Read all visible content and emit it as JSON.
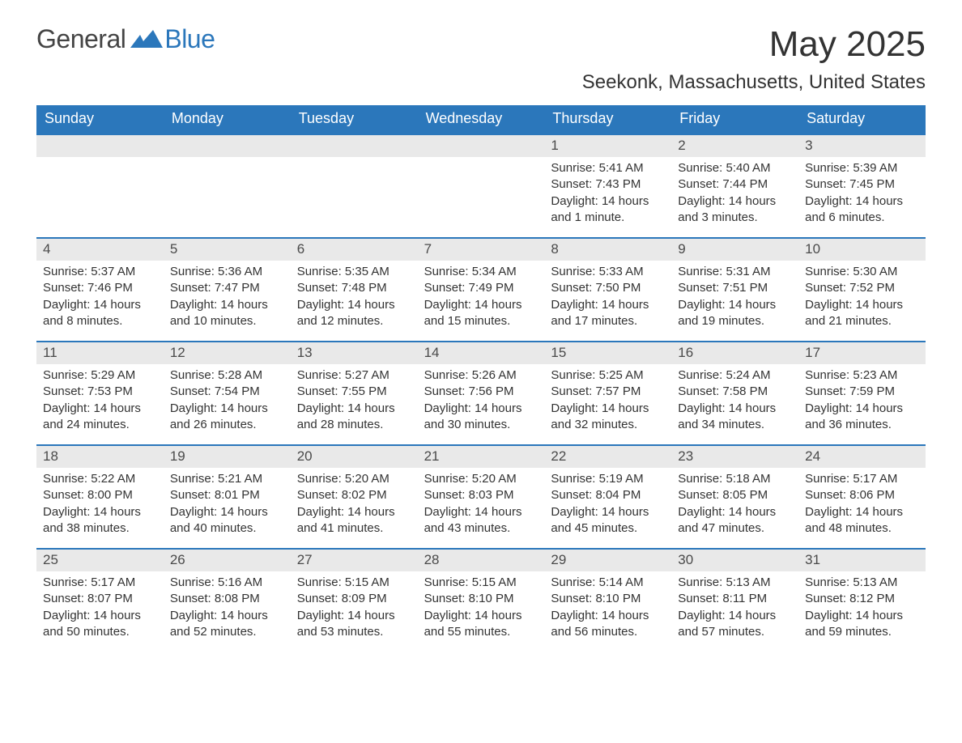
{
  "brand": {
    "part1": "General",
    "part2": "Blue"
  },
  "title": "May 2025",
  "location": "Seekonk, Massachusetts, United States",
  "colors": {
    "header_bg": "#2b77bb",
    "header_text": "#ffffff",
    "daynum_bg": "#e9e9e9",
    "daynum_text": "#4a4a4a",
    "body_text": "#333333",
    "border": "#2b77bb",
    "brand_blue": "#2b77bb",
    "page_bg": "#ffffff"
  },
  "fontsizes": {
    "title": 44,
    "subtitle": 24,
    "day_header": 18,
    "day_num": 17,
    "body": 15,
    "logo": 32
  },
  "day_headers": [
    "Sunday",
    "Monday",
    "Tuesday",
    "Wednesday",
    "Thursday",
    "Friday",
    "Saturday"
  ],
  "leading_blanks": 4,
  "days": [
    {
      "n": "1",
      "sunrise": "Sunrise: 5:41 AM",
      "sunset": "Sunset: 7:43 PM",
      "daylight": "Daylight: 14 hours and 1 minute."
    },
    {
      "n": "2",
      "sunrise": "Sunrise: 5:40 AM",
      "sunset": "Sunset: 7:44 PM",
      "daylight": "Daylight: 14 hours and 3 minutes."
    },
    {
      "n": "3",
      "sunrise": "Sunrise: 5:39 AM",
      "sunset": "Sunset: 7:45 PM",
      "daylight": "Daylight: 14 hours and 6 minutes."
    },
    {
      "n": "4",
      "sunrise": "Sunrise: 5:37 AM",
      "sunset": "Sunset: 7:46 PM",
      "daylight": "Daylight: 14 hours and 8 minutes."
    },
    {
      "n": "5",
      "sunrise": "Sunrise: 5:36 AM",
      "sunset": "Sunset: 7:47 PM",
      "daylight": "Daylight: 14 hours and 10 minutes."
    },
    {
      "n": "6",
      "sunrise": "Sunrise: 5:35 AM",
      "sunset": "Sunset: 7:48 PM",
      "daylight": "Daylight: 14 hours and 12 minutes."
    },
    {
      "n": "7",
      "sunrise": "Sunrise: 5:34 AM",
      "sunset": "Sunset: 7:49 PM",
      "daylight": "Daylight: 14 hours and 15 minutes."
    },
    {
      "n": "8",
      "sunrise": "Sunrise: 5:33 AM",
      "sunset": "Sunset: 7:50 PM",
      "daylight": "Daylight: 14 hours and 17 minutes."
    },
    {
      "n": "9",
      "sunrise": "Sunrise: 5:31 AM",
      "sunset": "Sunset: 7:51 PM",
      "daylight": "Daylight: 14 hours and 19 minutes."
    },
    {
      "n": "10",
      "sunrise": "Sunrise: 5:30 AM",
      "sunset": "Sunset: 7:52 PM",
      "daylight": "Daylight: 14 hours and 21 minutes."
    },
    {
      "n": "11",
      "sunrise": "Sunrise: 5:29 AM",
      "sunset": "Sunset: 7:53 PM",
      "daylight": "Daylight: 14 hours and 24 minutes."
    },
    {
      "n": "12",
      "sunrise": "Sunrise: 5:28 AM",
      "sunset": "Sunset: 7:54 PM",
      "daylight": "Daylight: 14 hours and 26 minutes."
    },
    {
      "n": "13",
      "sunrise": "Sunrise: 5:27 AM",
      "sunset": "Sunset: 7:55 PM",
      "daylight": "Daylight: 14 hours and 28 minutes."
    },
    {
      "n": "14",
      "sunrise": "Sunrise: 5:26 AM",
      "sunset": "Sunset: 7:56 PM",
      "daylight": "Daylight: 14 hours and 30 minutes."
    },
    {
      "n": "15",
      "sunrise": "Sunrise: 5:25 AM",
      "sunset": "Sunset: 7:57 PM",
      "daylight": "Daylight: 14 hours and 32 minutes."
    },
    {
      "n": "16",
      "sunrise": "Sunrise: 5:24 AM",
      "sunset": "Sunset: 7:58 PM",
      "daylight": "Daylight: 14 hours and 34 minutes."
    },
    {
      "n": "17",
      "sunrise": "Sunrise: 5:23 AM",
      "sunset": "Sunset: 7:59 PM",
      "daylight": "Daylight: 14 hours and 36 minutes."
    },
    {
      "n": "18",
      "sunrise": "Sunrise: 5:22 AM",
      "sunset": "Sunset: 8:00 PM",
      "daylight": "Daylight: 14 hours and 38 minutes."
    },
    {
      "n": "19",
      "sunrise": "Sunrise: 5:21 AM",
      "sunset": "Sunset: 8:01 PM",
      "daylight": "Daylight: 14 hours and 40 minutes."
    },
    {
      "n": "20",
      "sunrise": "Sunrise: 5:20 AM",
      "sunset": "Sunset: 8:02 PM",
      "daylight": "Daylight: 14 hours and 41 minutes."
    },
    {
      "n": "21",
      "sunrise": "Sunrise: 5:20 AM",
      "sunset": "Sunset: 8:03 PM",
      "daylight": "Daylight: 14 hours and 43 minutes."
    },
    {
      "n": "22",
      "sunrise": "Sunrise: 5:19 AM",
      "sunset": "Sunset: 8:04 PM",
      "daylight": "Daylight: 14 hours and 45 minutes."
    },
    {
      "n": "23",
      "sunrise": "Sunrise: 5:18 AM",
      "sunset": "Sunset: 8:05 PM",
      "daylight": "Daylight: 14 hours and 47 minutes."
    },
    {
      "n": "24",
      "sunrise": "Sunrise: 5:17 AM",
      "sunset": "Sunset: 8:06 PM",
      "daylight": "Daylight: 14 hours and 48 minutes."
    },
    {
      "n": "25",
      "sunrise": "Sunrise: 5:17 AM",
      "sunset": "Sunset: 8:07 PM",
      "daylight": "Daylight: 14 hours and 50 minutes."
    },
    {
      "n": "26",
      "sunrise": "Sunrise: 5:16 AM",
      "sunset": "Sunset: 8:08 PM",
      "daylight": "Daylight: 14 hours and 52 minutes."
    },
    {
      "n": "27",
      "sunrise": "Sunrise: 5:15 AM",
      "sunset": "Sunset: 8:09 PM",
      "daylight": "Daylight: 14 hours and 53 minutes."
    },
    {
      "n": "28",
      "sunrise": "Sunrise: 5:15 AM",
      "sunset": "Sunset: 8:10 PM",
      "daylight": "Daylight: 14 hours and 55 minutes."
    },
    {
      "n": "29",
      "sunrise": "Sunrise: 5:14 AM",
      "sunset": "Sunset: 8:10 PM",
      "daylight": "Daylight: 14 hours and 56 minutes."
    },
    {
      "n": "30",
      "sunrise": "Sunrise: 5:13 AM",
      "sunset": "Sunset: 8:11 PM",
      "daylight": "Daylight: 14 hours and 57 minutes."
    },
    {
      "n": "31",
      "sunrise": "Sunrise: 5:13 AM",
      "sunset": "Sunset: 8:12 PM",
      "daylight": "Daylight: 14 hours and 59 minutes."
    }
  ]
}
